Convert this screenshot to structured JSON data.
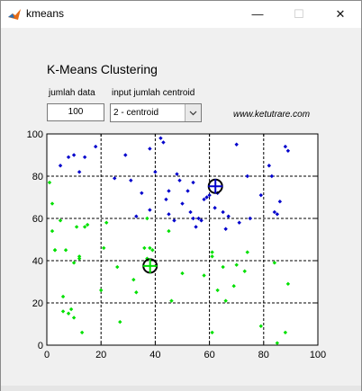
{
  "window": {
    "title": "kmeans",
    "min_label": "—",
    "max_label": "☐",
    "close_label": "✕"
  },
  "heading": "K-Means Clustering",
  "controls": {
    "data_label": "jumlah data",
    "data_value": "100",
    "centroid_label": "input jumlah centroid",
    "centroid_value": "2 - centroid"
  },
  "url": "www.ketutrare.com",
  "chart_data": {
    "type": "scatter",
    "xlim": [
      0,
      100
    ],
    "ylim": [
      0,
      100
    ],
    "x_ticks": [
      "0",
      "20",
      "40",
      "60",
      "80",
      "100"
    ],
    "y_ticks": [
      "0",
      "20",
      "40",
      "60",
      "80",
      "100"
    ],
    "grid": true,
    "colors": {
      "cluster1": "#00e000",
      "cluster2": "#0000cc"
    },
    "series": [
      {
        "points": [
          [
            1,
            77
          ],
          [
            2,
            67
          ],
          [
            2,
            54
          ],
          [
            3,
            45
          ],
          [
            3,
            45
          ],
          [
            5,
            59
          ],
          [
            6,
            23
          ],
          [
            6,
            16
          ],
          [
            7,
            45
          ],
          [
            8,
            15
          ],
          [
            9,
            17
          ],
          [
            10,
            39
          ],
          [
            10,
            13
          ],
          [
            11,
            56
          ],
          [
            12,
            42
          ],
          [
            12,
            41
          ],
          [
            13,
            6
          ],
          [
            14,
            56
          ],
          [
            15,
            57
          ],
          [
            20,
            26
          ],
          [
            21,
            46
          ],
          [
            22,
            58
          ],
          [
            26,
            37
          ],
          [
            27,
            11
          ],
          [
            32,
            31
          ],
          [
            33,
            25
          ],
          [
            36,
            46
          ],
          [
            37,
            60
          ],
          [
            37,
            41
          ],
          [
            38,
            46
          ],
          [
            39,
            45
          ],
          [
            45,
            54
          ],
          [
            46,
            21
          ],
          [
            50,
            34
          ],
          [
            58,
            33
          ],
          [
            61,
            44
          ],
          [
            61,
            42
          ],
          [
            61,
            6
          ],
          [
            63,
            26
          ],
          [
            65,
            37
          ],
          [
            66,
            21
          ],
          [
            69,
            28
          ],
          [
            70,
            38
          ],
          [
            73,
            35
          ],
          [
            74,
            44
          ],
          [
            79,
            9
          ],
          [
            84,
            39
          ],
          [
            85,
            1
          ],
          [
            88,
            6
          ],
          [
            89,
            29
          ]
        ]
      },
      {
        "points": [
          [
            5,
            85
          ],
          [
            8,
            89
          ],
          [
            10,
            90
          ],
          [
            12,
            82
          ],
          [
            14,
            89
          ],
          [
            18,
            94
          ],
          [
            25,
            79
          ],
          [
            29,
            90
          ],
          [
            31,
            78
          ],
          [
            33,
            61
          ],
          [
            35,
            72
          ],
          [
            38,
            93
          ],
          [
            38,
            64
          ],
          [
            40,
            82
          ],
          [
            42,
            98
          ],
          [
            43,
            96
          ],
          [
            44,
            69
          ],
          [
            45,
            73
          ],
          [
            45,
            62
          ],
          [
            47,
            59
          ],
          [
            48,
            81
          ],
          [
            49,
            78
          ],
          [
            50,
            67
          ],
          [
            52,
            73
          ],
          [
            53,
            63
          ],
          [
            54,
            77
          ],
          [
            54,
            60
          ],
          [
            55,
            56
          ],
          [
            56,
            60
          ],
          [
            57,
            59
          ],
          [
            58,
            69
          ],
          [
            59,
            70
          ],
          [
            60,
            71
          ],
          [
            62,
            65
          ],
          [
            63,
            72
          ],
          [
            65,
            63
          ],
          [
            66,
            55
          ],
          [
            67,
            61
          ],
          [
            70,
            95
          ],
          [
            71,
            58
          ],
          [
            74,
            80
          ],
          [
            75,
            60
          ],
          [
            79,
            71
          ],
          [
            82,
            85
          ],
          [
            83,
            80
          ],
          [
            84,
            63
          ],
          [
            85,
            62
          ],
          [
            86,
            68
          ],
          [
            88,
            94
          ],
          [
            89,
            92
          ]
        ]
      }
    ],
    "centroids": [
      {
        "x": 38.1,
        "y": 37.5
      },
      {
        "x": 62.2,
        "y": 75.2
      }
    ]
  }
}
